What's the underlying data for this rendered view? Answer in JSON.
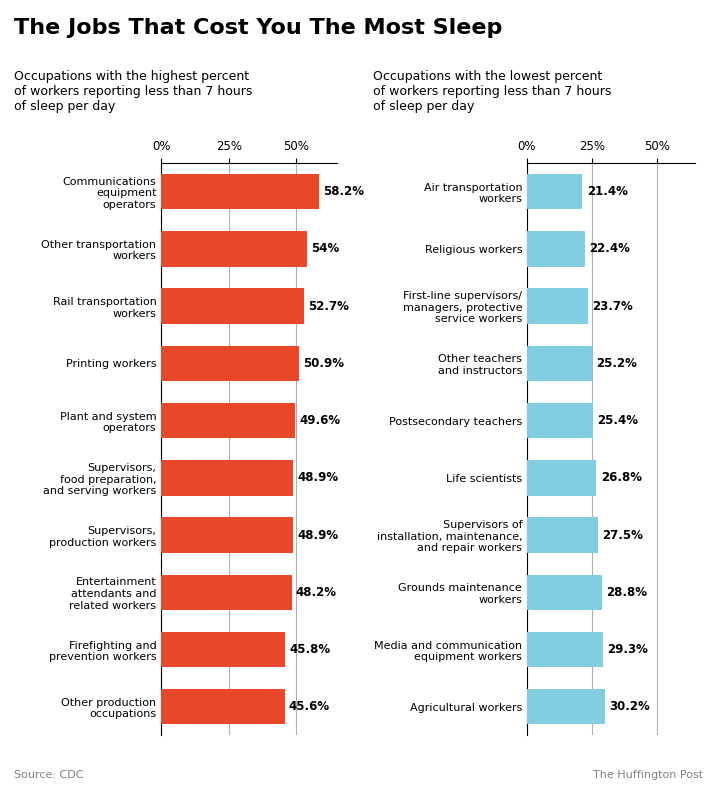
{
  "title": "The Jobs That Cost You The Most Sleep",
  "annotations": [
    "Source: CDC",
    "The Huffington Post"
  ],
  "chart_data": [
    {
      "type": "bar",
      "orientation": "horizontal",
      "subtitle": "Occupations with the highest percent\nof workers reporting less than 7 hours\nof sleep per day",
      "categories": [
        "Communications\nequipment\noperators",
        "Other transportation\nworkers",
        "Rail transportation\nworkers",
        "Printing workers",
        "Plant and system\noperators",
        "Supervisors,\nfood preparation,\nand serving workers",
        "Supervisors,\nproduction workers",
        "Entertainment\nattendants and\nrelated workers",
        "Firefighting and\nprevention workers",
        "Other production\noccupations"
      ],
      "values": [
        58.2,
        54.0,
        52.7,
        50.9,
        49.6,
        48.9,
        48.9,
        48.2,
        45.8,
        45.6
      ],
      "value_labels": [
        "58.2%",
        "54%",
        "52.7%",
        "50.9%",
        "49.6%",
        "48.9%",
        "48.9%",
        "48.2%",
        "45.8%",
        "45.6%"
      ],
      "data_labels": true,
      "color": "#e8472a",
      "xlim": [
        0,
        65
      ],
      "xticks": [
        {
          "value": 0,
          "label": "0%"
        },
        {
          "value": 25,
          "label": "25%"
        },
        {
          "value": 50,
          "label": "50%"
        }
      ],
      "grid": true
    },
    {
      "type": "bar",
      "orientation": "horizontal",
      "subtitle": "Occupations with the lowest percent\nof workers reporting less than 7 hours\nof sleep per day",
      "categories": [
        "Air transportation\nworkers",
        "Religious workers",
        "First-line supervisors/\nmanagers, protective\nservice workers",
        "Other teachers\nand instructors",
        "Postsecondary teachers",
        "Life scientists",
        "Supervisors of\ninstallation, maintenance,\nand repair workers",
        "Grounds maintenance\nworkers",
        "Media and communication\nequipment workers",
        "Agricultural workers"
      ],
      "values": [
        21.4,
        22.4,
        23.7,
        25.2,
        25.4,
        26.8,
        27.5,
        28.8,
        29.3,
        30.2
      ],
      "value_labels": [
        "21.4%",
        "22.4%",
        "23.7%",
        "25.2%",
        "25.4%",
        "26.8%",
        "27.5%",
        "28.8%",
        "29.3%",
        "30.2%"
      ],
      "data_labels": true,
      "color": "#82cee0",
      "xlim": [
        0,
        65
      ],
      "xticks": [
        {
          "value": 0,
          "label": "0%"
        },
        {
          "value": 25,
          "label": "25%"
        },
        {
          "value": 50,
          "label": "50%"
        }
      ],
      "grid": true
    }
  ]
}
